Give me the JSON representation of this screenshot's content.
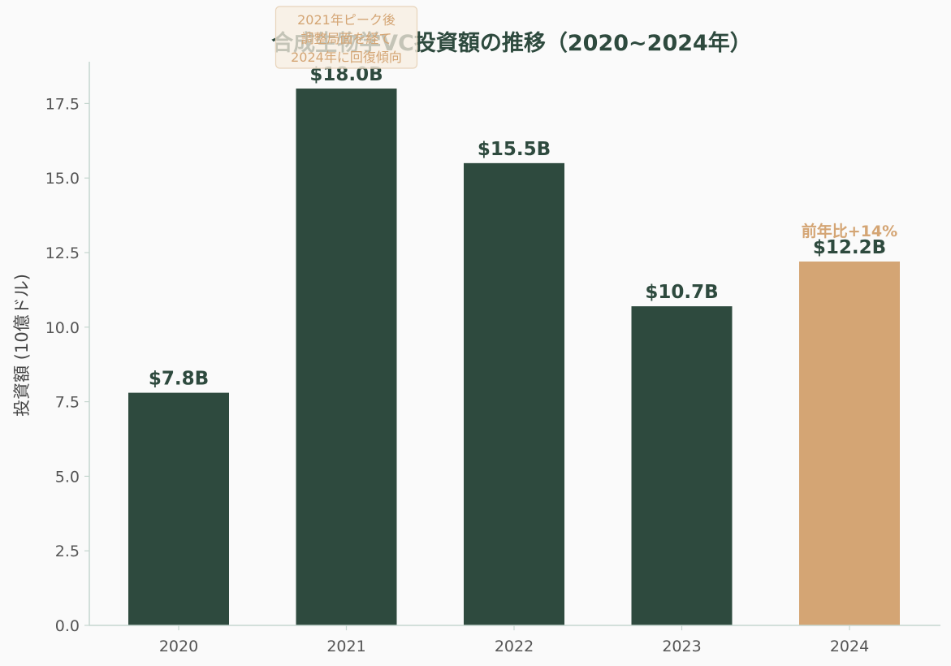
{
  "chart_data": {
    "type": "bar",
    "title": "合成生物学VC投資額の推移（2020~2024年）",
    "xlabel": "",
    "ylabel": "投資額 (10億ドル)",
    "categories": [
      "2020",
      "2021",
      "2022",
      "2023",
      "2024"
    ],
    "values": [
      7.8,
      18.0,
      15.5,
      10.7,
      12.2
    ],
    "value_labels": [
      "$7.8B",
      "$18.0B",
      "$15.5B",
      "$10.7B",
      "$12.2B"
    ],
    "ylim": [
      0,
      18.9
    ],
    "yticks": [
      0.0,
      2.5,
      5.0,
      7.5,
      10.0,
      12.5,
      15.0,
      17.5
    ],
    "ytick_labels": [
      "0.0",
      "2.5",
      "5.0",
      "7.5",
      "10.0",
      "12.5",
      "15.0",
      "17.5"
    ],
    "grid": false,
    "colors": {
      "default": "#2e4a3e",
      "highlight": "#d4a574",
      "axis": "#c5d6cf"
    },
    "highlight_index": 4,
    "annotations": [
      {
        "target": "2024",
        "text": "前年比+14%"
      },
      {
        "target": "2021",
        "lines": [
          "2021年ピーク後",
          "調整局面を経て",
          "2024年に回復傾向"
        ]
      }
    ]
  }
}
